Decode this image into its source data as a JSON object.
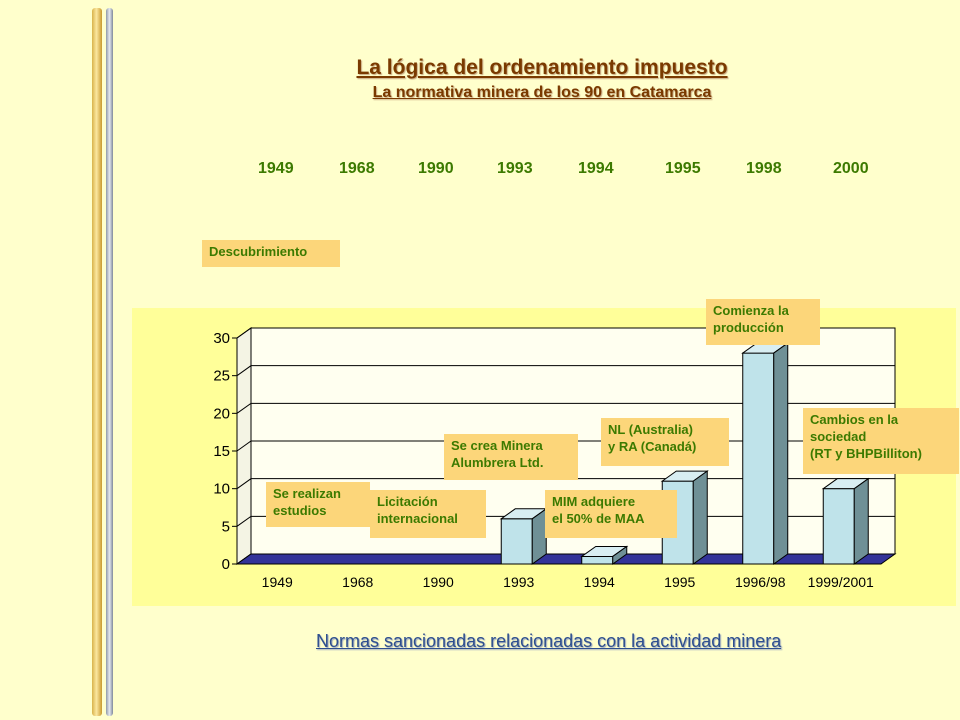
{
  "title": "La lógica del ordenamiento impuesto",
  "subtitle": "La normativa minera de los 90 en Catamarca",
  "timeline_years": [
    "1949",
    "1968",
    "1990",
    "1993",
    "1994",
    "1995",
    "1998",
    "2000"
  ],
  "annotations": {
    "descubrimiento": "Descubrimiento",
    "se_realizan": [
      "Se realizan",
      "estudios"
    ],
    "licitacion": [
      "Licitación",
      "internacional"
    ],
    "se_crea": [
      "Se crea Minera",
      "Alumbrera Ltd."
    ],
    "mim": [
      "MIM adquiere",
      "el 50% de MAA"
    ],
    "nl": [
      "NL (Australia)",
      "y RA (Canadá)"
    ],
    "comienza": [
      "Comienza la",
      "producción"
    ],
    "cambios": [
      "Cambios en la",
      "sociedad",
      "(RT y BHPBilliton)"
    ]
  },
  "footer": "Normas sancionadas relacionadas con la actividad minera",
  "colors": {
    "background": "#ffffcc",
    "chart_area": "#ffff99",
    "bar": "#bfe3ea",
    "floor": "#333399",
    "label_bg": "#fcd67a",
    "label_text": "#3c7a00",
    "title": "#7a3a00"
  },
  "chart_data": {
    "type": "bar",
    "categories": [
      "1949",
      "1968",
      "1990",
      "1993",
      "1994",
      "1995",
      "1996/98",
      "1999/2001"
    ],
    "values": [
      0,
      0,
      0,
      6,
      1,
      11,
      28,
      10
    ],
    "yticks": [
      "0",
      "5",
      "10",
      "15",
      "20",
      "25",
      "30"
    ],
    "ylim": [
      0,
      30
    ],
    "grid": true,
    "style": "3d"
  }
}
